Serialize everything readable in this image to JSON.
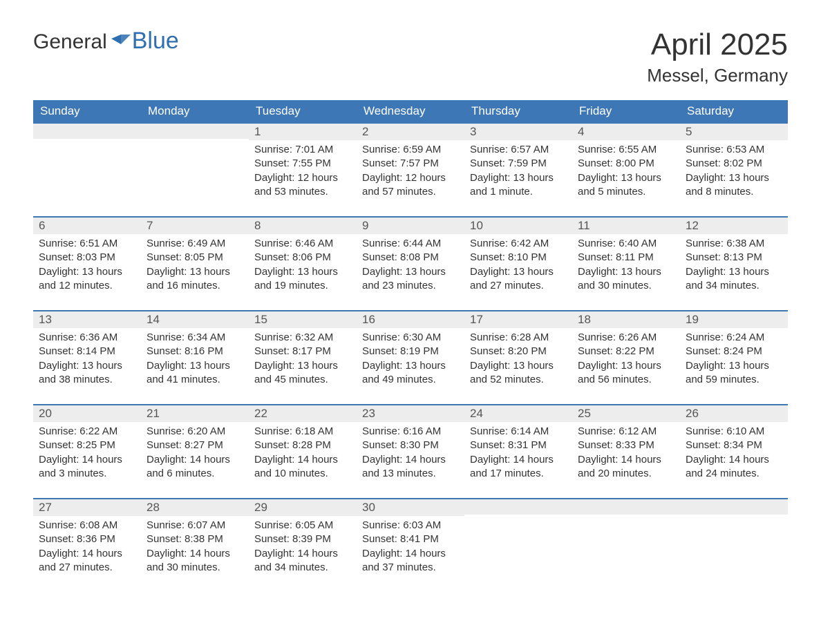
{
  "logo": {
    "word1": "General",
    "word2": "Blue"
  },
  "title": "April 2025",
  "location": "Messel, Germany",
  "colors": {
    "header_bg": "#3e77b6",
    "header_text": "#ffffff",
    "daynum_bg": "#ededed",
    "row_border": "#3e77b6",
    "body_text": "#333333",
    "logo_accent": "#2f6fb0"
  },
  "layout": {
    "columns": 7,
    "weeks": 5,
    "leading_blanks": 2,
    "trailing_blanks": 3
  },
  "weekdays": [
    "Sunday",
    "Monday",
    "Tuesday",
    "Wednesday",
    "Thursday",
    "Friday",
    "Saturday"
  ],
  "labels": {
    "sunrise": "Sunrise:",
    "sunset": "Sunset:",
    "daylight": "Daylight:"
  },
  "days": [
    {
      "n": "1",
      "sunrise": "7:01 AM",
      "sunset": "7:55 PM",
      "daylight": "12 hours and 53 minutes."
    },
    {
      "n": "2",
      "sunrise": "6:59 AM",
      "sunset": "7:57 PM",
      "daylight": "12 hours and 57 minutes."
    },
    {
      "n": "3",
      "sunrise": "6:57 AM",
      "sunset": "7:59 PM",
      "daylight": "13 hours and 1 minute."
    },
    {
      "n": "4",
      "sunrise": "6:55 AM",
      "sunset": "8:00 PM",
      "daylight": "13 hours and 5 minutes."
    },
    {
      "n": "5",
      "sunrise": "6:53 AM",
      "sunset": "8:02 PM",
      "daylight": "13 hours and 8 minutes."
    },
    {
      "n": "6",
      "sunrise": "6:51 AM",
      "sunset": "8:03 PM",
      "daylight": "13 hours and 12 minutes."
    },
    {
      "n": "7",
      "sunrise": "6:49 AM",
      "sunset": "8:05 PM",
      "daylight": "13 hours and 16 minutes."
    },
    {
      "n": "8",
      "sunrise": "6:46 AM",
      "sunset": "8:06 PM",
      "daylight": "13 hours and 19 minutes."
    },
    {
      "n": "9",
      "sunrise": "6:44 AM",
      "sunset": "8:08 PM",
      "daylight": "13 hours and 23 minutes."
    },
    {
      "n": "10",
      "sunrise": "6:42 AM",
      "sunset": "8:10 PM",
      "daylight": "13 hours and 27 minutes."
    },
    {
      "n": "11",
      "sunrise": "6:40 AM",
      "sunset": "8:11 PM",
      "daylight": "13 hours and 30 minutes."
    },
    {
      "n": "12",
      "sunrise": "6:38 AM",
      "sunset": "8:13 PM",
      "daylight": "13 hours and 34 minutes."
    },
    {
      "n": "13",
      "sunrise": "6:36 AM",
      "sunset": "8:14 PM",
      "daylight": "13 hours and 38 minutes."
    },
    {
      "n": "14",
      "sunrise": "6:34 AM",
      "sunset": "8:16 PM",
      "daylight": "13 hours and 41 minutes."
    },
    {
      "n": "15",
      "sunrise": "6:32 AM",
      "sunset": "8:17 PM",
      "daylight": "13 hours and 45 minutes."
    },
    {
      "n": "16",
      "sunrise": "6:30 AM",
      "sunset": "8:19 PM",
      "daylight": "13 hours and 49 minutes."
    },
    {
      "n": "17",
      "sunrise": "6:28 AM",
      "sunset": "8:20 PM",
      "daylight": "13 hours and 52 minutes."
    },
    {
      "n": "18",
      "sunrise": "6:26 AM",
      "sunset": "8:22 PM",
      "daylight": "13 hours and 56 minutes."
    },
    {
      "n": "19",
      "sunrise": "6:24 AM",
      "sunset": "8:24 PM",
      "daylight": "13 hours and 59 minutes."
    },
    {
      "n": "20",
      "sunrise": "6:22 AM",
      "sunset": "8:25 PM",
      "daylight": "14 hours and 3 minutes."
    },
    {
      "n": "21",
      "sunrise": "6:20 AM",
      "sunset": "8:27 PM",
      "daylight": "14 hours and 6 minutes."
    },
    {
      "n": "22",
      "sunrise": "6:18 AM",
      "sunset": "8:28 PM",
      "daylight": "14 hours and 10 minutes."
    },
    {
      "n": "23",
      "sunrise": "6:16 AM",
      "sunset": "8:30 PM",
      "daylight": "14 hours and 13 minutes."
    },
    {
      "n": "24",
      "sunrise": "6:14 AM",
      "sunset": "8:31 PM",
      "daylight": "14 hours and 17 minutes."
    },
    {
      "n": "25",
      "sunrise": "6:12 AM",
      "sunset": "8:33 PM",
      "daylight": "14 hours and 20 minutes."
    },
    {
      "n": "26",
      "sunrise": "6:10 AM",
      "sunset": "8:34 PM",
      "daylight": "14 hours and 24 minutes."
    },
    {
      "n": "27",
      "sunrise": "6:08 AM",
      "sunset": "8:36 PM",
      "daylight": "14 hours and 27 minutes."
    },
    {
      "n": "28",
      "sunrise": "6:07 AM",
      "sunset": "8:38 PM",
      "daylight": "14 hours and 30 minutes."
    },
    {
      "n": "29",
      "sunrise": "6:05 AM",
      "sunset": "8:39 PM",
      "daylight": "14 hours and 34 minutes."
    },
    {
      "n": "30",
      "sunrise": "6:03 AM",
      "sunset": "8:41 PM",
      "daylight": "14 hours and 37 minutes."
    }
  ]
}
